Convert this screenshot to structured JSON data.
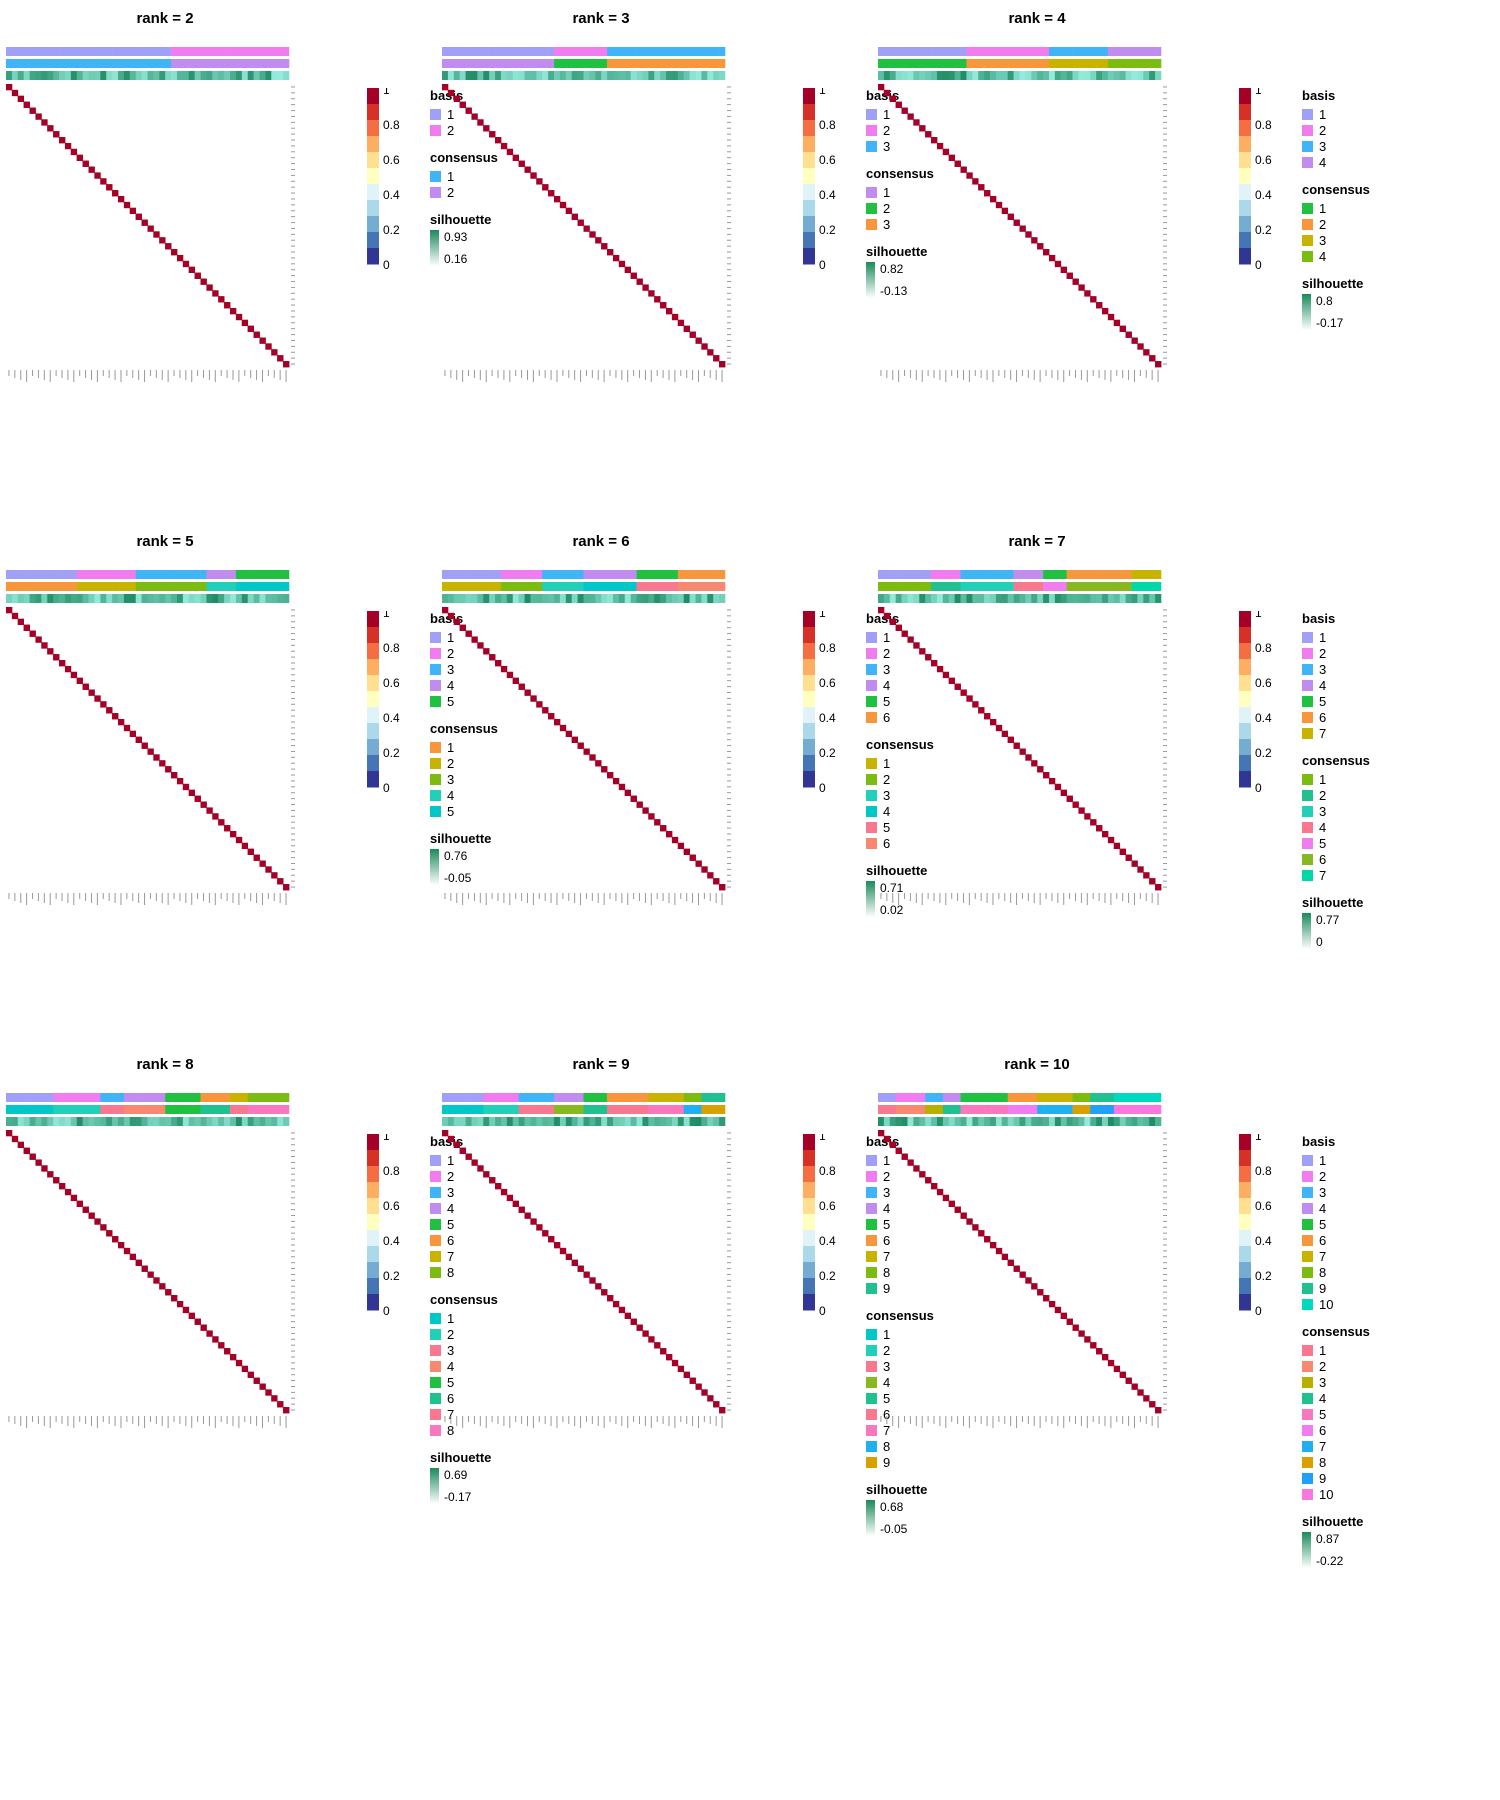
{
  "chart_data": [
    {
      "type": "heatmap",
      "title": "rank =  2",
      "rank": 2,
      "colorbar_ticks": [
        "1",
        "0.8",
        "0.6",
        "0.4",
        "0.2",
        "0"
      ],
      "basis": [
        "1",
        "2"
      ],
      "consensus": [
        "1",
        "2"
      ],
      "silhouette": [
        "0.93",
        "0.16"
      ],
      "basis_colors": [
        "#a0a0f8",
        "#f07cf0"
      ],
      "consensus_colors": [
        "#40b4f8",
        "#c08cf0"
      ]
    },
    {
      "type": "heatmap",
      "title": "rank =  3",
      "rank": 3,
      "colorbar_ticks": [
        "1",
        "0.8",
        "0.6",
        "0.4",
        "0.2",
        "0"
      ],
      "basis": [
        "1",
        "2",
        "3"
      ],
      "consensus": [
        "1",
        "2",
        "3"
      ],
      "silhouette": [
        "0.82",
        "-0.13"
      ],
      "basis_colors": [
        "#a0a0f8",
        "#f07cf0",
        "#40b4f8"
      ],
      "consensus_colors": [
        "#c08cf0",
        "#20c040",
        "#f8963c"
      ]
    },
    {
      "type": "heatmap",
      "title": "rank =  4",
      "rank": 4,
      "colorbar_ticks": [
        "1",
        "0.8",
        "0.6",
        "0.4",
        "0.2",
        "0"
      ],
      "basis": [
        "1",
        "2",
        "3",
        "4"
      ],
      "consensus": [
        "1",
        "2",
        "3",
        "4"
      ],
      "silhouette": [
        "0.8",
        "-0.17"
      ],
      "basis_colors": [
        "#a0a0f8",
        "#f07cf0",
        "#40b4f8",
        "#c08cf0"
      ],
      "consensus_colors": [
        "#20c040",
        "#f8963c",
        "#c8b400",
        "#7cbc10"
      ]
    },
    {
      "type": "heatmap",
      "title": "rank =  5",
      "rank": 5,
      "colorbar_ticks": [
        "1",
        "0.8",
        "0.6",
        "0.4",
        "0.2",
        "0"
      ],
      "basis": [
        "1",
        "2",
        "3",
        "4",
        "5"
      ],
      "consensus": [
        "1",
        "2",
        "3",
        "4",
        "5"
      ],
      "silhouette": [
        "0.76",
        "-0.05"
      ],
      "basis_colors": [
        "#a0a0f8",
        "#f07cf0",
        "#40b4f8",
        "#c08cf0",
        "#20c040"
      ],
      "consensus_colors": [
        "#f8963c",
        "#c8b400",
        "#7cbc10",
        "#20d0b8",
        "#00c8c8"
      ]
    },
    {
      "type": "heatmap",
      "title": "rank =  6",
      "rank": 6,
      "colorbar_ticks": [
        "1",
        "0.8",
        "0.6",
        "0.4",
        "0.2",
        "0"
      ],
      "basis": [
        "1",
        "2",
        "3",
        "4",
        "5",
        "6"
      ],
      "consensus": [
        "1",
        "2",
        "3",
        "4",
        "5",
        "6"
      ],
      "silhouette": [
        "0.71",
        "0.02"
      ],
      "basis_colors": [
        "#a0a0f8",
        "#f07cf0",
        "#40b4f8",
        "#c08cf0",
        "#20c040",
        "#f8963c"
      ],
      "consensus_colors": [
        "#c8b400",
        "#7cbc10",
        "#20d0b8",
        "#00c8c8",
        "#f87890",
        "#f88870"
      ]
    },
    {
      "type": "heatmap",
      "title": "rank =  7",
      "rank": 7,
      "colorbar_ticks": [
        "1",
        "0.8",
        "0.6",
        "0.4",
        "0.2",
        "0"
      ],
      "basis": [
        "1",
        "2",
        "3",
        "4",
        "5",
        "6",
        "7"
      ],
      "consensus": [
        "1",
        "2",
        "3",
        "4",
        "5",
        "6",
        "7"
      ],
      "silhouette": [
        "0.77",
        "0"
      ],
      "basis_colors": [
        "#a0a0f8",
        "#f07cf0",
        "#40b4f8",
        "#c08cf0",
        "#20c040",
        "#f8963c",
        "#c8b400"
      ],
      "consensus_colors": [
        "#7cbc10",
        "#20c090",
        "#20d0b8",
        "#f87890",
        "#f07cf0",
        "#88b820",
        "#00d8a8"
      ]
    },
    {
      "type": "heatmap",
      "title": "rank =  8",
      "rank": 8,
      "colorbar_ticks": [
        "1",
        "0.8",
        "0.6",
        "0.4",
        "0.2",
        "0"
      ],
      "basis": [
        "1",
        "2",
        "3",
        "4",
        "5",
        "6",
        "7",
        "8"
      ],
      "consensus": [
        "1",
        "2",
        "3",
        "4",
        "5",
        "6",
        "7",
        "8"
      ],
      "silhouette": [
        "0.69",
        "-0.17"
      ],
      "basis_colors": [
        "#a0a0f8",
        "#f07cf0",
        "#40b4f8",
        "#c08cf0",
        "#20c040",
        "#f8963c",
        "#c8b400",
        "#7cbc10"
      ],
      "consensus_colors": [
        "#00c8c8",
        "#20d0b8",
        "#f87890",
        "#f88870",
        "#20c040",
        "#20c090",
        "#f87890",
        "#f878c0"
      ]
    },
    {
      "type": "heatmap",
      "title": "rank =  9",
      "rank": 9,
      "colorbar_ticks": [
        "1",
        "0.8",
        "0.6",
        "0.4",
        "0.2",
        "0"
      ],
      "basis": [
        "1",
        "2",
        "3",
        "4",
        "5",
        "6",
        "7",
        "8",
        "9"
      ],
      "consensus": [
        "1",
        "2",
        "3",
        "4",
        "5",
        "6",
        "7",
        "8",
        "9"
      ],
      "silhouette": [
        "0.68",
        "-0.05"
      ],
      "basis_colors": [
        "#a0a0f8",
        "#f07cf0",
        "#40b4f8",
        "#c08cf0",
        "#20c040",
        "#f8963c",
        "#c8b400",
        "#7cbc10",
        "#20c090"
      ],
      "consensus_colors": [
        "#00c8c8",
        "#20d0b8",
        "#f87890",
        "#88b820",
        "#20c090",
        "#f87890",
        "#f878c0",
        "#20b0f0",
        "#d8a000"
      ]
    },
    {
      "type": "heatmap",
      "title": "rank =  10",
      "rank": 10,
      "colorbar_ticks": [
        "1",
        "0.8",
        "0.6",
        "0.4",
        "0.2",
        "0"
      ],
      "basis": [
        "1",
        "2",
        "3",
        "4",
        "5",
        "6",
        "7",
        "8",
        "9",
        "10"
      ],
      "consensus": [
        "1",
        "2",
        "3",
        "4",
        "5",
        "6",
        "7",
        "8",
        "9",
        "10"
      ],
      "silhouette": [
        "0.87",
        "-0.22"
      ],
      "basis_colors": [
        "#a0a0f8",
        "#f07cf0",
        "#40b4f8",
        "#c08cf0",
        "#20c040",
        "#f8963c",
        "#c8b400",
        "#7cbc10",
        "#20c090",
        "#00d8c0"
      ],
      "consensus_colors": [
        "#f87890",
        "#f88870",
        "#b8b000",
        "#20c090",
        "#f878c0",
        "#f07cf0",
        "#20b0f0",
        "#d8a000",
        "#20a0f8",
        "#f878e0"
      ]
    }
  ]
}
